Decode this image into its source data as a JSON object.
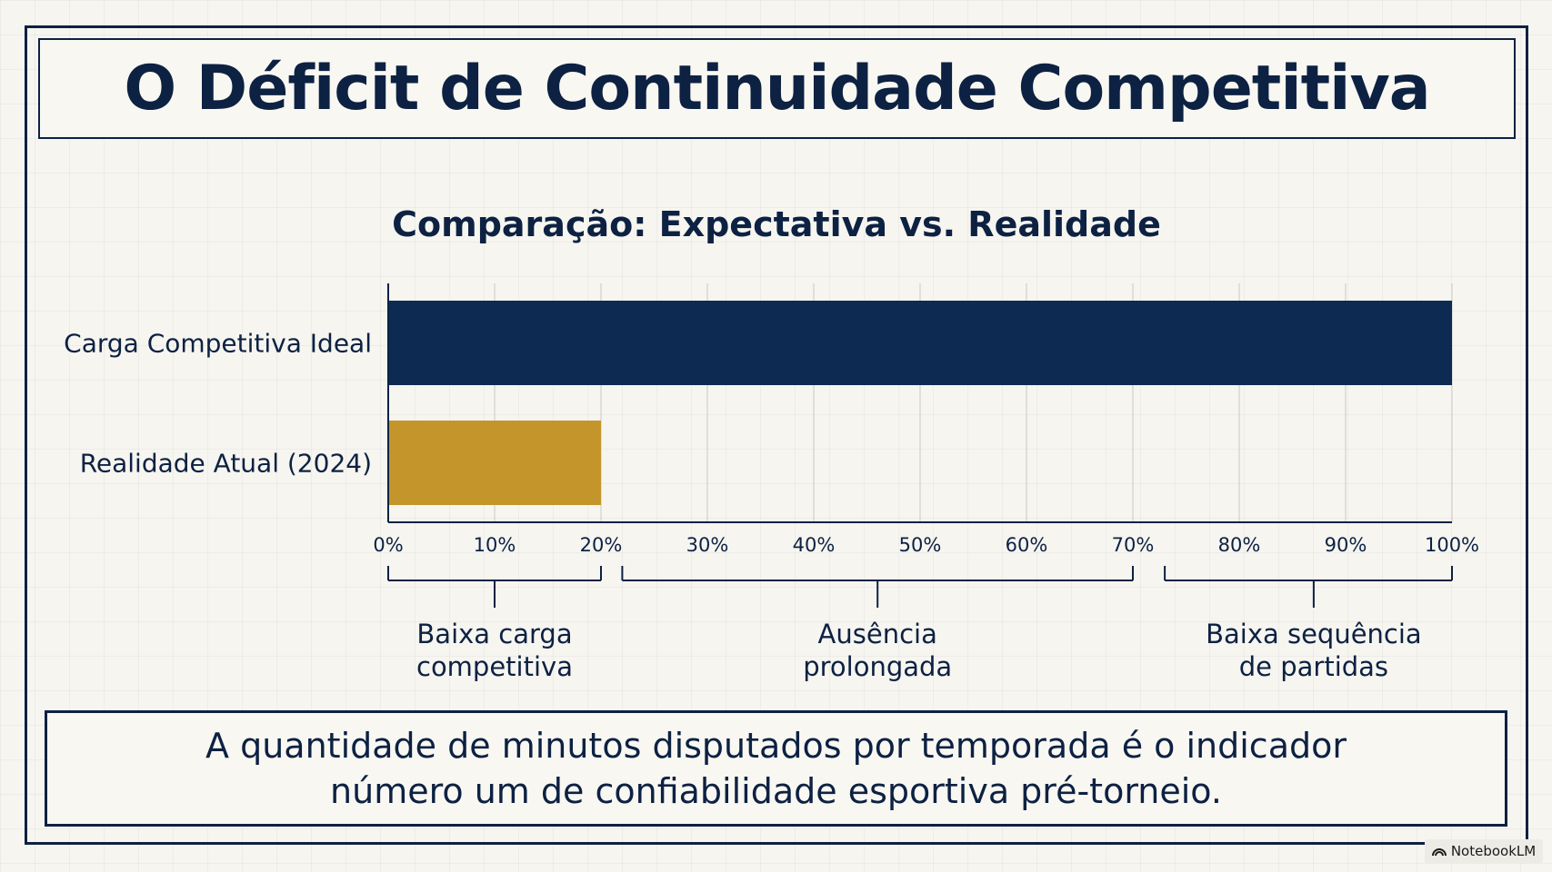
{
  "header": {
    "title": "O Déficit de Continuidade Competitiva"
  },
  "chart_data": {
    "type": "bar",
    "orientation": "horizontal",
    "title": "Comparação: Expectativa vs. Realidade",
    "categories": [
      "Carga Competitiva Ideal",
      "Realidade Atual (2024)"
    ],
    "values": [
      100,
      20
    ],
    "colors": [
      "#0d2a52",
      "#c4952a"
    ],
    "xlim": [
      0,
      100
    ],
    "xticks": [
      "0%",
      "10%",
      "20%",
      "30%",
      "40%",
      "50%",
      "60%",
      "70%",
      "80%",
      "90%",
      "100%"
    ],
    "grid": true,
    "annotations": [
      {
        "label": "Baixa carga\ncompetitiva",
        "from": 0,
        "to": 20,
        "mark": 10
      },
      {
        "label": "Ausência\nprolongada",
        "from": 22,
        "to": 70,
        "mark": 46
      },
      {
        "label": "Baixa sequência\nde partidas",
        "from": 73,
        "to": 100,
        "mark": 87
      }
    ]
  },
  "footer": {
    "text": "A quantidade de minutos disputados por temporada é o indicador\nnúmero um de confiabilidade esportiva pré-torneio."
  },
  "badge": {
    "label": "NotebookLM",
    "icon": "notebooklm-logo-icon"
  }
}
